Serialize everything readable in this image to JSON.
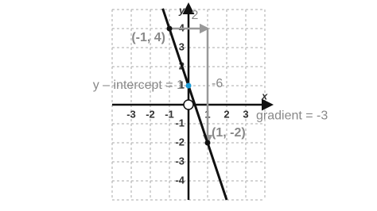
{
  "chart_data": {
    "type": "line",
    "x": [
      -1.35,
      -1,
      0,
      1,
      2
    ],
    "values": [
      5.05,
      4,
      1,
      -2,
      -5
    ],
    "color": "#111111",
    "xlim": [
      -4,
      4
    ],
    "ylim": [
      -5,
      5
    ],
    "xticks": [
      -3,
      -2,
      -1,
      1,
      2,
      3
    ],
    "yticks": [
      -4,
      -3,
      -2,
      -1,
      1,
      2,
      3,
      4
    ],
    "grid": true,
    "xlabel": "x",
    "ylabel": "y",
    "points": [
      {
        "label": "(-1, 4)",
        "x": -1,
        "y": 4,
        "color": "#111111",
        "label_color": "#888888"
      },
      {
        "label": "y – intercept = 1",
        "x": 0,
        "y": 1,
        "color": "#1a9ad6",
        "label_color": "#1a9ad6"
      },
      {
        "label": "(1, -2)",
        "x": 1,
        "y": -2,
        "color": "#111111",
        "label_color": "#888888"
      }
    ],
    "run": 2,
    "rise": -6,
    "step_color": "#999999",
    "gradient_label": "gradient = -3"
  }
}
